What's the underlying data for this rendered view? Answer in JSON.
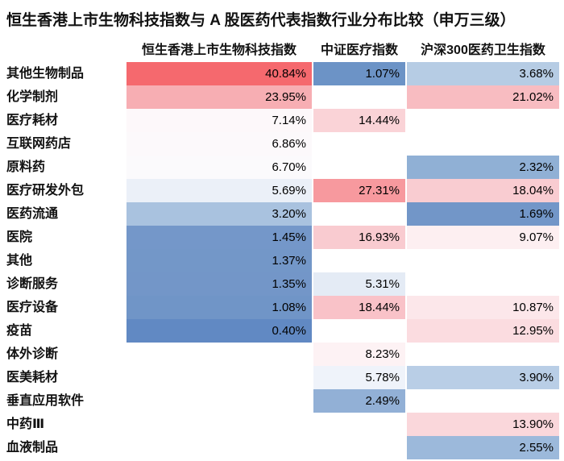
{
  "title": "恒生香港上市生物科技指数与 A 股医药代表指数行业分布比较（申万三级）",
  "chart_data": {
    "type": "heatmap",
    "title": "恒生香港上市生物科技指数与 A 股医药代表指数行业分布比较（申万三级）",
    "value_unit": "%",
    "columns": [
      "恒生香港上市生物科技指数",
      "中证医疗指数",
      "沪深300医药卫生指数"
    ],
    "rows": [
      "其他生物制品",
      "化学制剂",
      "医疗耗材",
      "互联网药店",
      "原料药",
      "医疗研发外包",
      "医药流通",
      "医院",
      "其他",
      "诊断服务",
      "医疗设备",
      "疫苗",
      "体外诊断",
      "医美耗材",
      "垂直应用软件",
      "中药Ⅲ",
      "血液制品"
    ],
    "series": [
      {
        "name": "恒生香港上市生物科技指数",
        "values": [
          40.84,
          23.95,
          7.14,
          6.86,
          6.7,
          5.69,
          3.2,
          1.45,
          1.37,
          1.35,
          1.08,
          0.4,
          null,
          null,
          null,
          null,
          null
        ]
      },
      {
        "name": "中证医疗指数",
        "values": [
          1.07,
          null,
          14.44,
          null,
          null,
          27.31,
          null,
          16.93,
          null,
          5.31,
          18.44,
          null,
          8.23,
          5.78,
          2.49,
          null,
          null
        ]
      },
      {
        "name": "沪深300医药卫生指数",
        "values": [
          3.68,
          21.02,
          null,
          null,
          2.32,
          18.04,
          1.69,
          9.07,
          null,
          null,
          10.87,
          12.95,
          null,
          3.9,
          null,
          13.9,
          2.55
        ]
      }
    ],
    "cell_colors": [
      [
        "#F5696E",
        "#F7AEB3",
        "#FDF8FA",
        "#FCF9FB",
        "#FBFAFC",
        "#EBF0F8",
        "#A9C2DF",
        "#7497C9",
        "#7397C8",
        "#7396C8",
        "#7095C7",
        "#6189C3",
        null,
        null,
        null,
        null,
        null
      ],
      [
        "#6C93C6",
        null,
        "#FAD3D7",
        null,
        null,
        "#F7999E",
        null,
        "#F9CBD0",
        null,
        "#E4EBF5",
        "#F9C2C8",
        null,
        "#FDF2F4",
        "#EFF3FA",
        "#92B0D6",
        null,
        null
      ],
      [
        "#B6CCE4",
        "#F8BCC1",
        null,
        null,
        "#90B0D5",
        "#F9CCD1",
        "#7296C8",
        "#FDEFF1",
        null,
        null,
        "#FCE7EA",
        "#FBDCE0",
        null,
        "#B9CEE6",
        null,
        "#FAD7DB",
        "#9CB9DB"
      ]
    ],
    "colorscale": {
      "high_color": "#F8696B",
      "mid_color": "#FCFCFF",
      "low_color": "#5A8AC6"
    },
    "layout": {
      "grid": false,
      "legend": "none",
      "value_format": "0.00%"
    }
  }
}
